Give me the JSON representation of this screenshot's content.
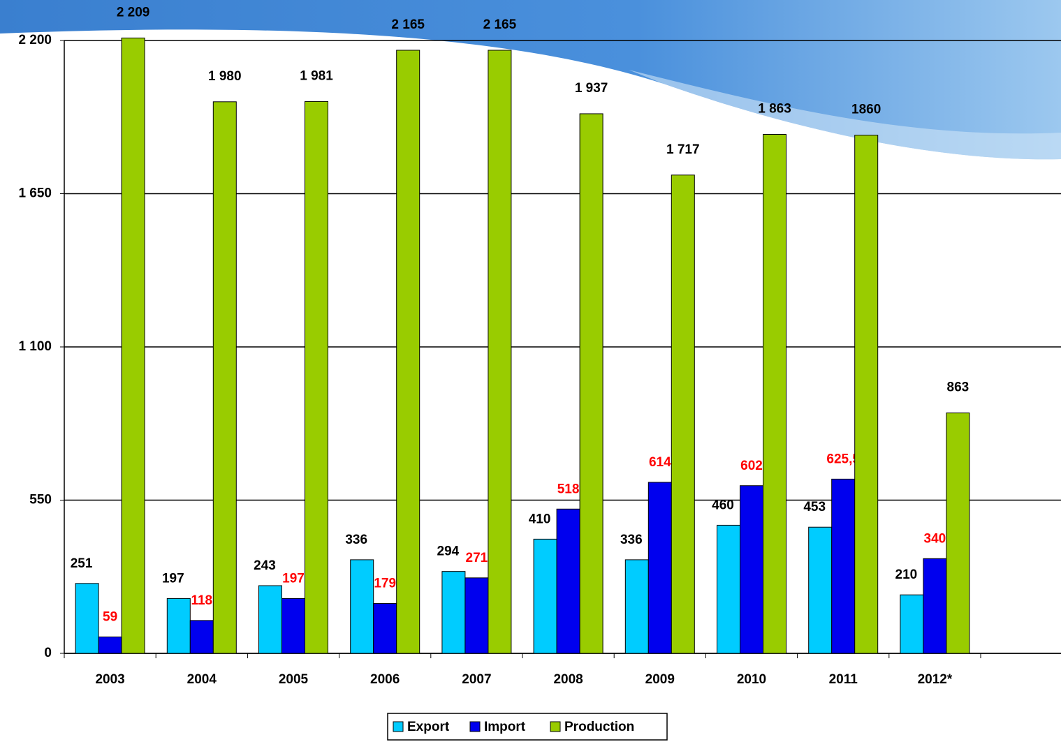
{
  "chart_data": {
    "type": "bar",
    "categories": [
      "2003",
      "2004",
      "2005",
      "2006",
      "2007",
      "2008",
      "2009",
      "2010",
      "2011",
      "2012*"
    ],
    "series": [
      {
        "name": "Export",
        "color": "#00ccff",
        "values": [
          251,
          197,
          243,
          336,
          294,
          410,
          336,
          460,
          453,
          210
        ]
      },
      {
        "name": "Import",
        "color": "#0000ee",
        "values": [
          59,
          118,
          197,
          179,
          271,
          518,
          614,
          602,
          625.5,
          340
        ],
        "value_labels": [
          "59",
          "118",
          "197",
          "179",
          "271",
          "518",
          "614",
          "602",
          "625,5",
          "340"
        ]
      },
      {
        "name": "Production",
        "color": "#99cc00",
        "values": [
          2209,
          1980,
          1981,
          2165,
          2165,
          1937,
          1717,
          1863,
          1860,
          863
        ],
        "value_labels": [
          "2 209",
          "1 980",
          "1 981",
          "2 165",
          "2 165",
          "1 937",
          "1 717",
          "1 863",
          "1860",
          "863"
        ]
      }
    ],
    "ylim": [
      0,
      2200
    ],
    "yticks": [
      0,
      550,
      {
        "value": 1100,
        "label": "1 100"
      },
      {
        "value": 1650,
        "label": "1 650"
      },
      {
        "value": 2200,
        "label": "2 200"
      }
    ],
    "grid": true,
    "legend": "bottom"
  }
}
